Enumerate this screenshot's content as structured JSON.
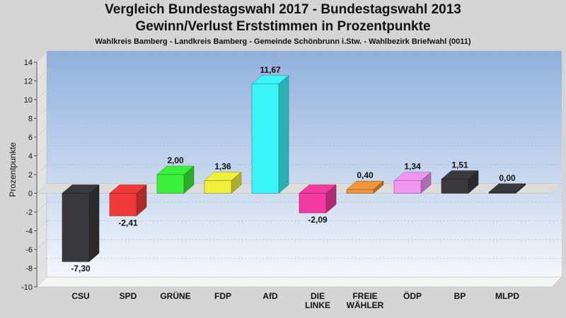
{
  "header": {
    "title": "Vergleich Bundestagswahl 2017 - Bundestagswahl 2013",
    "subtitle": "Gewinn/Verlust Erststimmen in Prozentpunkte",
    "caption": "Wahlkreis Bamberg - Landkreis Bamberg - Gemeinde Schönbrunn i.Stw. - Wahlbezirk Briefwahl (0011)"
  },
  "chart_data": {
    "type": "bar",
    "ylabel": "Prozentpunkte",
    "ylim": [
      -10,
      14
    ],
    "yticks": [
      "14",
      "12",
      "10",
      "8",
      "6",
      "4",
      "2",
      "0",
      "-2",
      "-4",
      "-6",
      "-8",
      "-10"
    ],
    "grid": true,
    "categories": [
      "CSU",
      "SPD",
      "GRÜNE",
      "FDP",
      "AfD",
      "DIE\nLINKE",
      "FREIE\nWÄHLER",
      "ÖDP",
      "BP",
      "MLPD"
    ],
    "values": [
      -7.3,
      -2.41,
      2.0,
      1.36,
      11.67,
      -2.09,
      0.4,
      1.34,
      1.51,
      0.0
    ],
    "value_labels": [
      "-7,30",
      "-2,41",
      "2,00",
      "1,36",
      "11,67",
      "-2,09",
      "0,40",
      "1,34",
      "1,51",
      "0,00"
    ],
    "colors": [
      "#3a3a3e",
      "#f23a3a",
      "#3af03a",
      "#f0f03a",
      "#3af5f8",
      "#f23aa0",
      "#f0963a",
      "#f096f0",
      "#3a3a3e",
      "#3a3a3e"
    ]
  }
}
